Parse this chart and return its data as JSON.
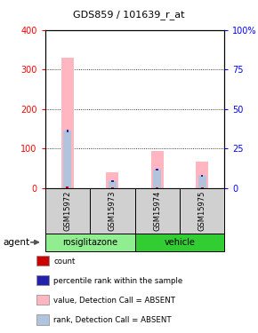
{
  "title": "GDS859 / 101639_r_at",
  "samples": [
    "GSM15972",
    "GSM15973",
    "GSM15974",
    "GSM15975"
  ],
  "groups": [
    {
      "name": "rosiglitazone",
      "color": "#90EE90",
      "samples": [
        0,
        1
      ]
    },
    {
      "name": "vehicle",
      "color": "#32CD32",
      "samples": [
        2,
        3
      ]
    }
  ],
  "value_bars": [
    330,
    40,
    95,
    68
  ],
  "rank_bars_scaled": [
    145,
    18,
    48,
    32
  ],
  "count_vals": [
    5,
    3,
    3,
    3
  ],
  "ylim_left": [
    0,
    400
  ],
  "ylim_right": [
    0,
    100
  ],
  "yticks_left": [
    0,
    100,
    200,
    300,
    400
  ],
  "yticks_right": [
    0,
    25,
    50,
    75,
    100
  ],
  "ytick_labels_right": [
    "0",
    "25",
    "50",
    "75",
    "100%"
  ],
  "color_value_absent": "#FFB6C1",
  "color_rank_absent": "#B0C4DE",
  "color_count": "#CC0000",
  "color_rank": "#2222AA",
  "agent_label": "agent",
  "group_label_color_rosiglitazone": "#90EE90",
  "group_label_color_vehicle": "#32CD32",
  "legend_items": [
    {
      "color": "#CC0000",
      "label": "count"
    },
    {
      "color": "#2222AA",
      "label": "percentile rank within the sample"
    },
    {
      "color": "#FFB6C1",
      "label": "value, Detection Call = ABSENT"
    },
    {
      "color": "#B0C4DE",
      "label": "rank, Detection Call = ABSENT"
    }
  ]
}
